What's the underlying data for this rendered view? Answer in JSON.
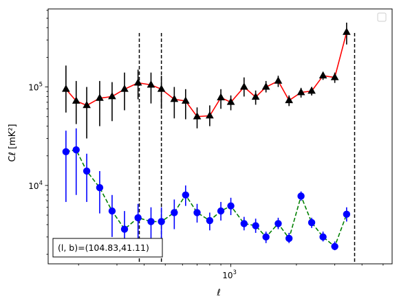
{
  "chart_data": {
    "type": "line",
    "title": "",
    "xlabel": "ℓ",
    "ylabel": "Cℓ  [mK²]",
    "xscale": "log",
    "yscale": "log",
    "xlim": [
      145,
      5500
    ],
    "ylim": [
      1600,
      620000
    ],
    "grid": false,
    "legend": "top-right",
    "x_tick_labels": [
      {
        "value": 1000,
        "label": "10",
        "exp": "3"
      }
    ],
    "y_tick_labels": [
      {
        "value": 10000,
        "label": "10",
        "exp": "4"
      },
      {
        "value": 100000,
        "label": "10",
        "exp": "5"
      }
    ],
    "vlines": [
      380,
      480,
      3700
    ],
    "annotation": "(l, b)=(104.83,41.11)",
    "series": [
      {
        "color": "#ff0000",
        "marker": "triangle",
        "marker_color": "#000000",
        "errorbar_color": "#000000",
        "linestyle": "solid",
        "points": [
          {
            "x": 175,
            "y": 95000,
            "lo": 55000,
            "hi": 165000
          },
          {
            "x": 195,
            "y": 72000,
            "lo": 42000,
            "hi": 115000
          },
          {
            "x": 218,
            "y": 65000,
            "lo": 30000,
            "hi": 100000
          },
          {
            "x": 250,
            "y": 77000,
            "lo": 40000,
            "hi": 115000
          },
          {
            "x": 285,
            "y": 80000,
            "lo": 45000,
            "hi": 112000
          },
          {
            "x": 325,
            "y": 95000,
            "lo": 58000,
            "hi": 140000
          },
          {
            "x": 375,
            "y": 110000,
            "lo": 75000,
            "hi": 150000
          },
          {
            "x": 430,
            "y": 105000,
            "lo": 68000,
            "hi": 140000
          },
          {
            "x": 480,
            "y": 95000,
            "lo": 60000,
            "hi": 130000
          },
          {
            "x": 550,
            "y": 75000,
            "lo": 48000,
            "hi": 100000
          },
          {
            "x": 620,
            "y": 72000,
            "lo": 47000,
            "hi": 95000
          },
          {
            "x": 700,
            "y": 50000,
            "lo": 38000,
            "hi": 62000
          },
          {
            "x": 800,
            "y": 51000,
            "lo": 40000,
            "hi": 65000
          },
          {
            "x": 900,
            "y": 78000,
            "lo": 60000,
            "hi": 95000
          },
          {
            "x": 1000,
            "y": 70000,
            "lo": 58000,
            "hi": 82000
          },
          {
            "x": 1150,
            "y": 100000,
            "lo": 80000,
            "hi": 125000
          },
          {
            "x": 1300,
            "y": 79000,
            "lo": 66000,
            "hi": 92000
          },
          {
            "x": 1450,
            "y": 100000,
            "lo": 88000,
            "hi": 115000
          },
          {
            "x": 1650,
            "y": 115000,
            "lo": 100000,
            "hi": 130000
          },
          {
            "x": 1850,
            "y": 73000,
            "lo": 64000,
            "hi": 82000
          },
          {
            "x": 2100,
            "y": 88000,
            "lo": 78000,
            "hi": 98000
          },
          {
            "x": 2350,
            "y": 91000,
            "lo": 82000,
            "hi": 100000
          },
          {
            "x": 2650,
            "y": 130000,
            "lo": 118000,
            "hi": 142000
          },
          {
            "x": 3000,
            "y": 125000,
            "lo": 110000,
            "hi": 140000
          },
          {
            "x": 3400,
            "y": 360000,
            "lo": 270000,
            "hi": 450000
          }
        ]
      },
      {
        "color": "#008000",
        "marker": "circle",
        "marker_color": "#0000ff",
        "errorbar_color": "#0000ff",
        "linestyle": "dashed",
        "points": [
          {
            "x": 175,
            "y": 22000,
            "lo": 6800,
            "hi": 36000
          },
          {
            "x": 195,
            "y": 23000,
            "lo": 8000,
            "hi": 38000
          },
          {
            "x": 218,
            "y": 14000,
            "lo": 6800,
            "hi": 21000
          },
          {
            "x": 250,
            "y": 9500,
            "lo": 5200,
            "hi": 14000
          },
          {
            "x": 285,
            "y": 5500,
            "lo": 3000,
            "hi": 8000
          },
          {
            "x": 325,
            "y": 3600,
            "lo": 2000,
            "hi": 5500
          },
          {
            "x": 375,
            "y": 4700,
            "lo": 2600,
            "hi": 6500
          },
          {
            "x": 430,
            "y": 4300,
            "lo": 2400,
            "hi": 6000
          },
          {
            "x": 480,
            "y": 4300,
            "lo": 2600,
            "hi": 6000
          },
          {
            "x": 550,
            "y": 5300,
            "lo": 3600,
            "hi": 7200
          },
          {
            "x": 620,
            "y": 8000,
            "lo": 6200,
            "hi": 10000
          },
          {
            "x": 700,
            "y": 5300,
            "lo": 4200,
            "hi": 6500
          },
          {
            "x": 800,
            "y": 4400,
            "lo": 3500,
            "hi": 5300
          },
          {
            "x": 900,
            "y": 5500,
            "lo": 4400,
            "hi": 6800
          },
          {
            "x": 1000,
            "y": 6200,
            "lo": 5000,
            "hi": 7500
          },
          {
            "x": 1150,
            "y": 4100,
            "lo": 3500,
            "hi": 4800
          },
          {
            "x": 1300,
            "y": 3900,
            "lo": 3300,
            "hi": 4600
          },
          {
            "x": 1450,
            "y": 3000,
            "lo": 2600,
            "hi": 3400
          },
          {
            "x": 1650,
            "y": 4100,
            "lo": 3600,
            "hi": 4700
          },
          {
            "x": 1850,
            "y": 2900,
            "lo": 2600,
            "hi": 3300
          },
          {
            "x": 2100,
            "y": 7800,
            "lo": 7000,
            "hi": 8700
          },
          {
            "x": 2350,
            "y": 4200,
            "lo": 3700,
            "hi": 4700
          },
          {
            "x": 2650,
            "y": 3000,
            "lo": 2700,
            "hi": 3400
          },
          {
            "x": 3000,
            "y": 2400,
            "lo": 2200,
            "hi": 2700
          },
          {
            "x": 3400,
            "y": 5100,
            "lo": 4300,
            "hi": 6000
          }
        ]
      }
    ]
  }
}
